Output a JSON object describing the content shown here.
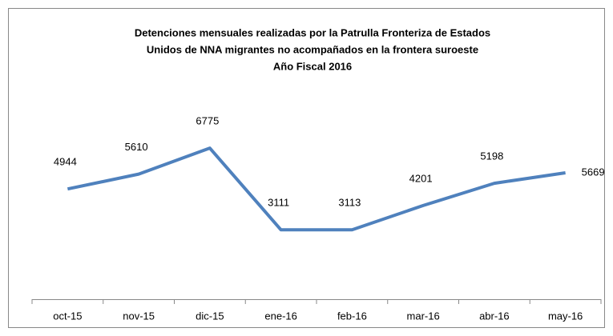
{
  "chart_data": {
    "type": "line",
    "title": [
      "Detenciones mensuales realizadas por la Patrulla Fronteriza de Estados",
      "Unidos de NNA migrantes no acompañados en la frontera suroeste",
      "Año Fiscal 2016"
    ],
    "categories": [
      "oct-15",
      "nov-15",
      "dic-15",
      "ene-16",
      "feb-16",
      "mar-16",
      "abr-16",
      "may-16"
    ],
    "series": [
      {
        "name": "Detenciones",
        "color": "#4f81bd",
        "values": [
          4944,
          5610,
          6775,
          3111,
          3113,
          4201,
          5198,
          5669
        ]
      }
    ],
    "ylim": [
      0,
      8000
    ]
  }
}
